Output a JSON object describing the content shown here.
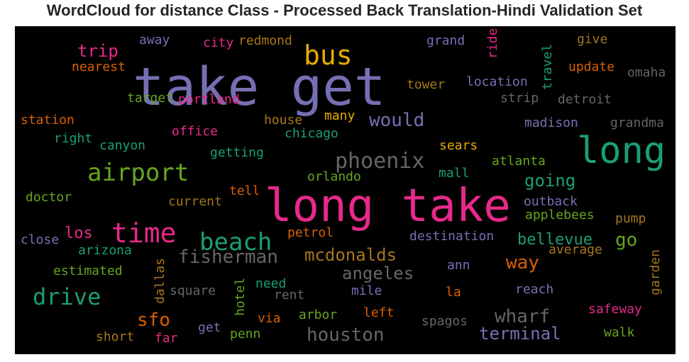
{
  "chart_data": {
    "type": "wordcloud",
    "title": "WordCloud for distance Class - Processed Back Translation-Hindi Validation Set",
    "background": "#000000",
    "palette": "Dark2",
    "words": [
      {
        "text": "long take",
        "color": "#e7298a"
      },
      {
        "text": "take get",
        "color": "#7570b3"
      },
      {
        "text": "long",
        "color": "#1b9e77"
      },
      {
        "text": "bus",
        "color": "#e6ab02"
      },
      {
        "text": "airport",
        "color": "#66a61e"
      },
      {
        "text": "time",
        "color": "#e7298a"
      },
      {
        "text": "beach",
        "color": "#1b9e77"
      },
      {
        "text": "phoenix",
        "color": "#666666"
      },
      {
        "text": "drive",
        "color": "#1b9e77"
      },
      {
        "text": "fisherman",
        "color": "#666666"
      },
      {
        "text": "mcdonalds",
        "color": "#a6761d"
      },
      {
        "text": "houston",
        "color": "#666666"
      },
      {
        "text": "wharf",
        "color": "#666666"
      },
      {
        "text": "terminal",
        "color": "#7570b3"
      },
      {
        "text": "angeles",
        "color": "#666666"
      },
      {
        "text": "would",
        "color": "#7570b3"
      },
      {
        "text": "going",
        "color": "#1b9e77"
      },
      {
        "text": "bellevue",
        "color": "#1b9e77"
      },
      {
        "text": "go",
        "color": "#66a61e"
      },
      {
        "text": "way",
        "color": "#d95f02"
      },
      {
        "text": "sfo",
        "color": "#d95f02"
      },
      {
        "text": "trip",
        "color": "#e7298a"
      },
      {
        "text": "los",
        "color": "#e7298a"
      },
      {
        "text": "away",
        "color": "#7570b3"
      },
      {
        "text": "city",
        "color": "#e7298a"
      },
      {
        "text": "redmond",
        "color": "#a6761d"
      },
      {
        "text": "grand",
        "color": "#7570b3"
      },
      {
        "text": "give",
        "color": "#a6761d"
      },
      {
        "text": "ride",
        "color": "#e7298a"
      },
      {
        "text": "nearest",
        "color": "#d95f02"
      },
      {
        "text": "update",
        "color": "#d95f02"
      },
      {
        "text": "location",
        "color": "#7570b3"
      },
      {
        "text": "travel",
        "color": "#1b9e77"
      },
      {
        "text": "tower",
        "color": "#a6761d"
      },
      {
        "text": "omaha",
        "color": "#666666"
      },
      {
        "text": "target",
        "color": "#66a61e"
      },
      {
        "text": "portland",
        "color": "#e7298a"
      },
      {
        "text": "strip",
        "color": "#666666"
      },
      {
        "text": "detroit",
        "color": "#666666"
      },
      {
        "text": "station",
        "color": "#d95f02"
      },
      {
        "text": "house",
        "color": "#a6761d"
      },
      {
        "text": "many",
        "color": "#e6ab02"
      },
      {
        "text": "madison",
        "color": "#7570b3"
      },
      {
        "text": "grandma",
        "color": "#666666"
      },
      {
        "text": "right",
        "color": "#1b9e77"
      },
      {
        "text": "office",
        "color": "#e7298a"
      },
      {
        "text": "chicago",
        "color": "#1b9e77"
      },
      {
        "text": "canyon",
        "color": "#1b9e77"
      },
      {
        "text": "sears",
        "color": "#e6ab02"
      },
      {
        "text": "getting",
        "color": "#1b9e77"
      },
      {
        "text": "atlanta",
        "color": "#66a61e"
      },
      {
        "text": "mall",
        "color": "#1b9e77"
      },
      {
        "text": "orlando",
        "color": "#66a61e"
      },
      {
        "text": "doctor",
        "color": "#66a61e"
      },
      {
        "text": "tell",
        "color": "#d95f02"
      },
      {
        "text": "current",
        "color": "#a6761d"
      },
      {
        "text": "outback",
        "color": "#7570b3"
      },
      {
        "text": "applebees",
        "color": "#66a61e"
      },
      {
        "text": "pump",
        "color": "#a6761d"
      },
      {
        "text": "close",
        "color": "#7570b3"
      },
      {
        "text": "petrol",
        "color": "#d95f02"
      },
      {
        "text": "destination",
        "color": "#7570b3"
      },
      {
        "text": "average",
        "color": "#a6761d"
      },
      {
        "text": "arizona",
        "color": "#1b9e77"
      },
      {
        "text": "garden",
        "color": "#a6761d"
      },
      {
        "text": "estimated",
        "color": "#66a61e"
      },
      {
        "text": "dallas",
        "color": "#a6761d"
      },
      {
        "text": "ann",
        "color": "#7570b3"
      },
      {
        "text": "need",
        "color": "#1b9e77"
      },
      {
        "text": "square",
        "color": "#666666"
      },
      {
        "text": "rent",
        "color": "#666666"
      },
      {
        "text": "mile",
        "color": "#7570b3"
      },
      {
        "text": "la",
        "color": "#d95f02"
      },
      {
        "text": "reach",
        "color": "#7570b3"
      },
      {
        "text": "hotel",
        "color": "#66a61e"
      },
      {
        "text": "via",
        "color": "#d95f02"
      },
      {
        "text": "arbor",
        "color": "#66a61e"
      },
      {
        "text": "left",
        "color": "#d95f02"
      },
      {
        "text": "safeway",
        "color": "#e7298a"
      },
      {
        "text": "spagos",
        "color": "#666666"
      },
      {
        "text": "get",
        "color": "#7570b3"
      },
      {
        "text": "penn",
        "color": "#66a61e"
      },
      {
        "text": "walk",
        "color": "#66a61e"
      },
      {
        "text": "short",
        "color": "#a6761d"
      },
      {
        "text": "far",
        "color": "#e7298a"
      }
    ]
  }
}
